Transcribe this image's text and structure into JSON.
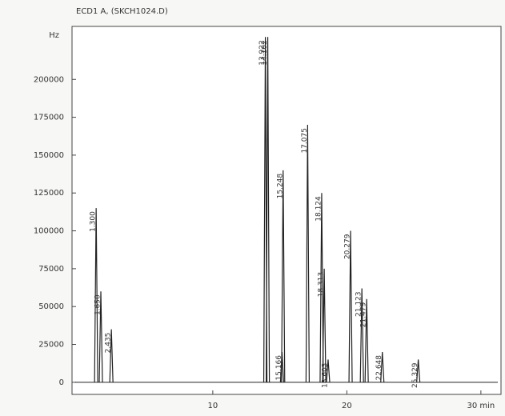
{
  "chart_data": {
    "type": "chromatogram",
    "title": "ECD1 A, (SKCH1024.D)",
    "y_label": "Hz",
    "x": [
      1.3,
      1.65,
      2.435,
      13.922,
      14.102,
      15.166,
      15.248,
      17.075,
      18.124,
      18.313,
      18.603,
      20.279,
      21.123,
      21.479,
      22.648,
      25.329
    ],
    "x_labels": [
      "1.300",
      "1.650",
      "2.435",
      "13.922",
      "14.102",
      "15.166",
      "15.248",
      "17.075",
      "18.124",
      "18.313",
      "18.603",
      "20.279",
      "21.123",
      "21.479",
      "22.648",
      "25.329"
    ],
    "values": [
      115000,
      60000,
      35000,
      228000,
      228000,
      20000,
      140000,
      170000,
      125000,
      75000,
      15000,
      100000,
      62000,
      55000,
      20000,
      15000
    ],
    "color": "#222222",
    "xlim": [
      -0.5,
      31.5
    ],
    "ylim": [
      -8000,
      235000
    ],
    "xticks": [
      10,
      20,
      {
        "value": 30,
        "label": "30 min"
      }
    ],
    "yticks": [
      0,
      25000,
      50000,
      75000,
      100000,
      125000,
      150000,
      175000,
      200000
    ]
  }
}
